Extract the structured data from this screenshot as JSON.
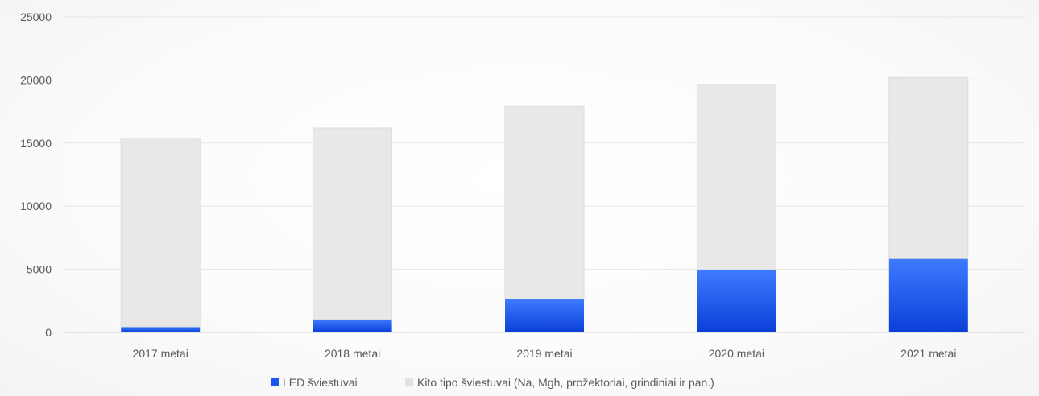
{
  "chart_data": {
    "type": "bar",
    "stacked": true,
    "categories": [
      "2017 metai",
      "2018 metai",
      "2019 metai",
      "2020 metai",
      "2021 metai"
    ],
    "series": [
      {
        "name": "LED šviestuvai",
        "values": [
          450,
          1050,
          2650,
          5000,
          5850
        ],
        "color": "#1a56f0"
      },
      {
        "name": "Kito tipo šviestuvai (Na, Mgh, prožektoriai, grindiniai ir pan.)",
        "values": [
          14950,
          15150,
          15250,
          14650,
          14350
        ],
        "color": "#e8e8e8"
      }
    ],
    "ylim": [
      0,
      25000
    ],
    "yticks": [
      0,
      5000,
      10000,
      15000,
      20000,
      25000
    ],
    "title": "",
    "xlabel": "",
    "ylabel": "",
    "grid": true,
    "legend_position": "bottom"
  }
}
